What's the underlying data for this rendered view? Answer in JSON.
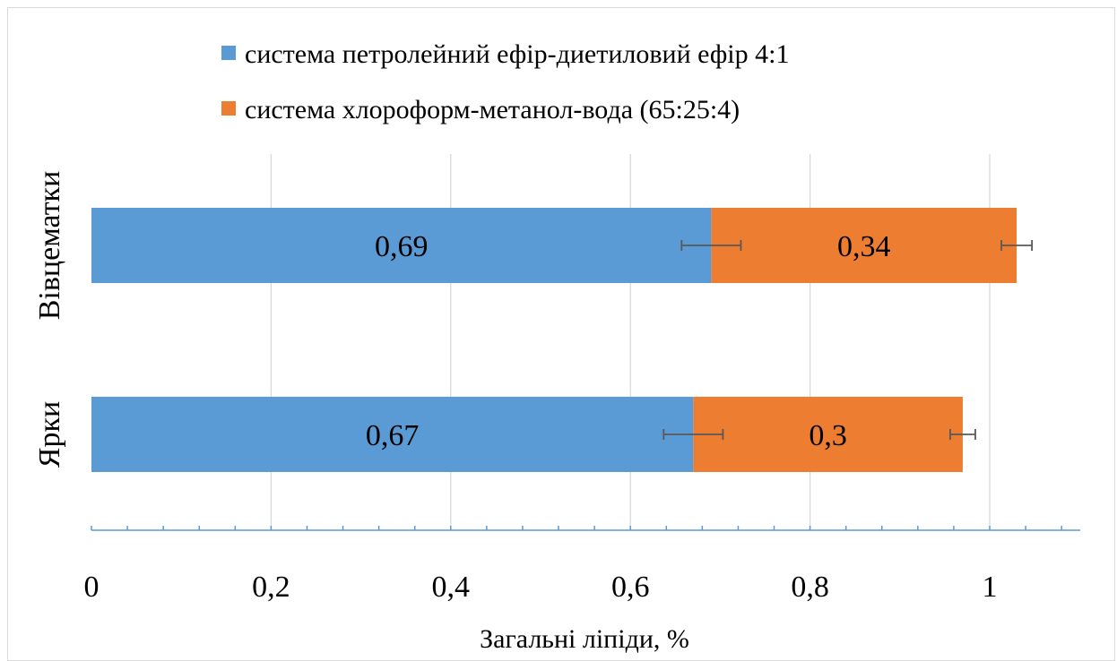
{
  "chart_data": {
    "type": "bar",
    "orientation": "horizontal",
    "stacked": true,
    "title": "",
    "xlabel": "Загальні ліпіди, %",
    "ylabel": "",
    "categories": [
      "Вівцематки",
      "Ярки"
    ],
    "series": [
      {
        "name": "система петролейний ефір-диетиловий ефір 4:1",
        "color": "#5b9bd5",
        "values": [
          0.69,
          0.67
        ],
        "labels": [
          "0,69",
          "0,67"
        ],
        "errors": [
          0.033,
          0.033
        ]
      },
      {
        "name": "система хлороформ-метанол-вода (65:25:4)",
        "color": "#ed7d31",
        "values": [
          0.34,
          0.3
        ],
        "labels": [
          "0,34",
          "0,3"
        ],
        "errors": [
          0.017,
          0.014
        ]
      }
    ],
    "xlim": [
      0,
      1.1
    ],
    "x_ticks": [
      0,
      0.2,
      0.4,
      0.6,
      0.8,
      1
    ],
    "x_tick_labels": [
      "0",
      "0,2",
      "0,4",
      "0,6",
      "0,8",
      "1"
    ],
    "grid": true,
    "legend_position": "top",
    "axis_color": "#5b9bd5"
  }
}
